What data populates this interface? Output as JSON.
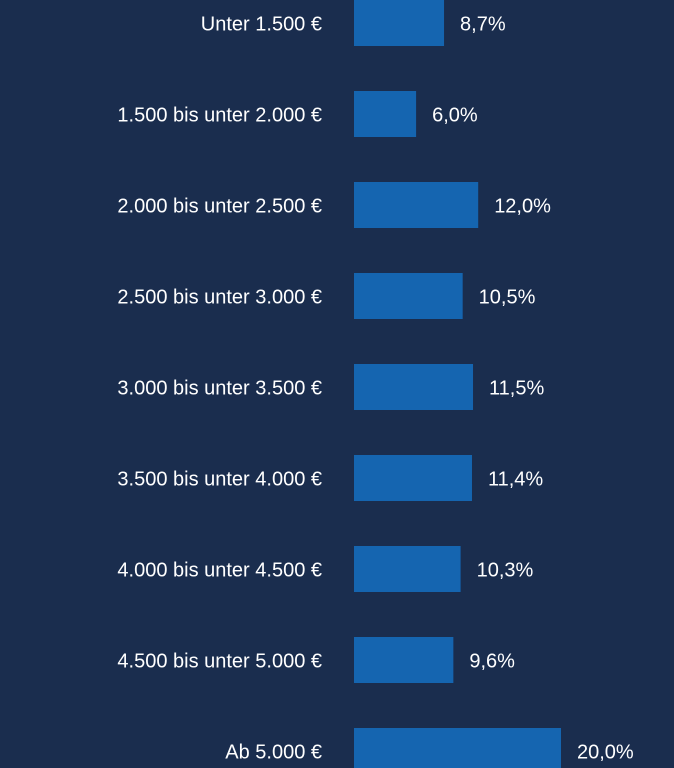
{
  "chart_data": {
    "type": "bar",
    "orientation": "horizontal",
    "categories": [
      "Unter 1.500 €",
      "1.500 bis unter 2.000 €",
      "2.000 bis unter 2.500 €",
      "2.500 bis unter 3.000 €",
      "3.000 bis unter 3.500 €",
      "3.500 bis unter 4.000 €",
      "4.000 bis unter 4.500 €",
      "4.500 bis unter 5.000 €",
      "Ab 5.000 €"
    ],
    "values": [
      8.7,
      6.0,
      12.0,
      10.5,
      11.5,
      11.4,
      10.3,
      9.6,
      20.0
    ],
    "value_labels": [
      "8,7%",
      "6,0%",
      "12,0%",
      "10,5%",
      "11,5%",
      "11,4%",
      "10,3%",
      "9,6%",
      "20,0%"
    ],
    "color": "#1565b0"
  }
}
